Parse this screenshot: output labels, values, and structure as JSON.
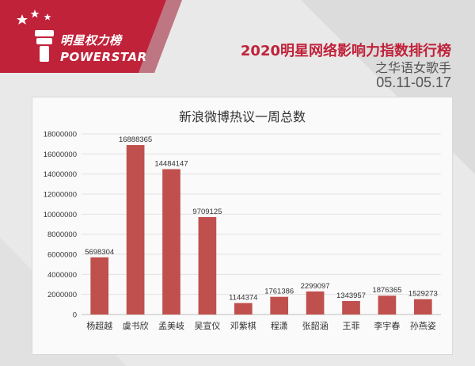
{
  "header": {
    "logo_cn": "明星权力榜",
    "logo_en": "POWERSTAR",
    "title": "2020明星网络影响力指数排行榜",
    "subtitle": "之华语女歌手",
    "date_range": "05.11-05.17"
  },
  "colors": {
    "brand_red": "#c0223a",
    "bar": "#c0504d"
  },
  "chart_data": {
    "type": "bar",
    "title": "新浪微博热议一周总数",
    "categories": [
      "杨超越",
      "虞书欣",
      "孟美岐",
      "吴宣仪",
      "邓紫棋",
      "程潇",
      "张韶涵",
      "王菲",
      "李宇春",
      "孙燕姿"
    ],
    "values": [
      5698304,
      16888365,
      14484147,
      9709125,
      1144374,
      1761386,
      2299097,
      1343957,
      1876365,
      1529273
    ],
    "value_labels": [
      "5698304",
      "16888365",
      "14484147",
      "9709125",
      "1144374",
      "1761386",
      "2299097",
      "1343957",
      "1876365",
      "1529273"
    ],
    "yticks": [
      0,
      2000000,
      4000000,
      6000000,
      8000000,
      10000000,
      12000000,
      14000000,
      16000000,
      18000000
    ],
    "ytick_labels": [
      "0",
      "2000000",
      "4000000",
      "6000000",
      "8000000",
      "10000000",
      "12000000",
      "14000000",
      "16000000",
      "18000000"
    ],
    "ylim": [
      0,
      18000000
    ],
    "grid": true,
    "legend": "none"
  }
}
